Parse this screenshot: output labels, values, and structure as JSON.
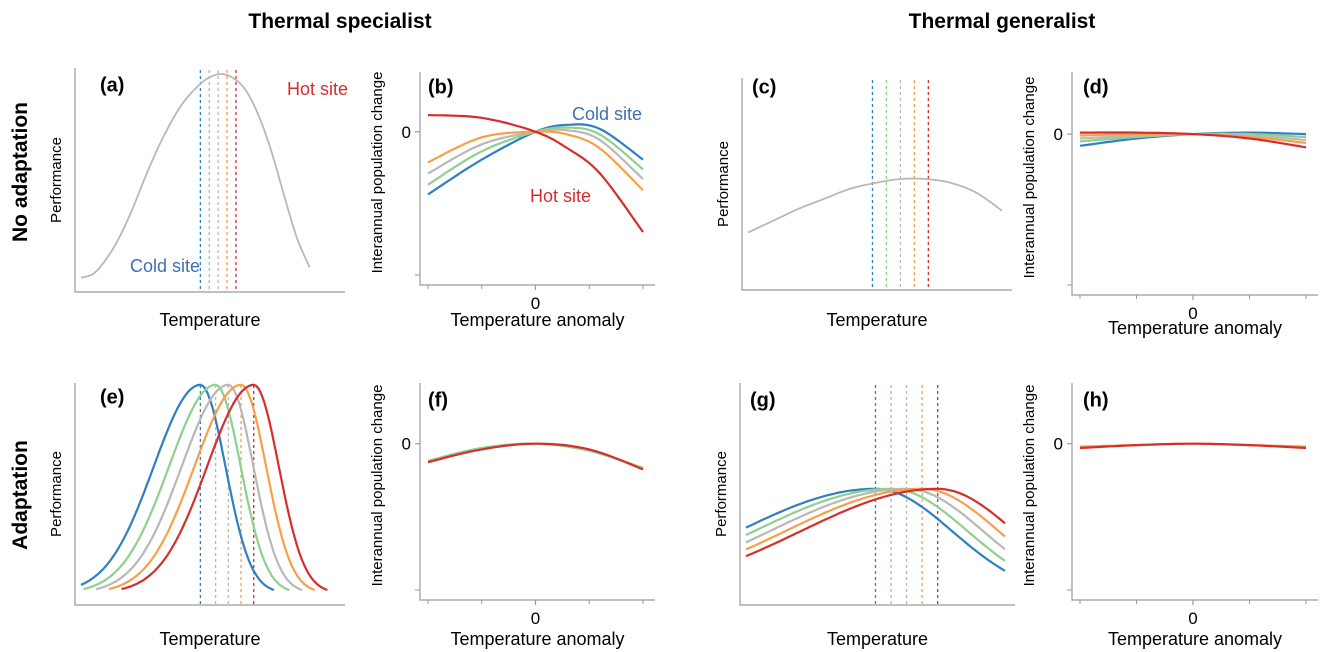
{
  "figure": {
    "column_titles": [
      "Thermal specialist",
      "Thermal generalist"
    ],
    "row_titles": [
      "No adaptation",
      "Adaptation"
    ]
  },
  "colors": {
    "blue": "#2f7fc1",
    "green": "#8fcf8f",
    "grey": "#b8b8b8",
    "orange": "#f5a04a",
    "red": "#d62d2d",
    "cold_label": "#3e6fb5",
    "hot_label": "#d62d2d"
  },
  "chart_data": [
    {
      "panel": "(a)",
      "type": "line",
      "xlabel": "Temperature",
      "ylabel": "Performance",
      "xlim": [
        0,
        1
      ],
      "ylim": [
        0,
        1
      ],
      "series": [
        {
          "color": "grey",
          "x": [
            0.0,
            0.05,
            0.1,
            0.15,
            0.2,
            0.25,
            0.3,
            0.35,
            0.4,
            0.45,
            0.5,
            0.55,
            0.6,
            0.65,
            0.7,
            0.75,
            0.8,
            0.85,
            0.9
          ],
          "y": [
            0.03,
            0.05,
            0.12,
            0.22,
            0.35,
            0.5,
            0.64,
            0.76,
            0.86,
            0.93,
            0.98,
            1.0,
            0.98,
            0.92,
            0.8,
            0.63,
            0.42,
            0.22,
            0.08
          ]
        }
      ],
      "vlines": [
        {
          "x": 0.47,
          "color": "blue"
        },
        {
          "x": 0.505,
          "color": "green"
        },
        {
          "x": 0.54,
          "color": "grey"
        },
        {
          "x": 0.575,
          "color": "orange"
        },
        {
          "x": 0.61,
          "color": "red"
        }
      ],
      "annotations": [
        {
          "text": "Cold site",
          "color": "cold_label"
        },
        {
          "text": "Hot site",
          "color": "hot_label"
        }
      ]
    },
    {
      "panel": "(b)",
      "type": "line",
      "xlabel": "Temperature  anomaly",
      "ylabel": "Interannual population change",
      "xticks": [
        {
          "x": 0,
          "label": "0"
        }
      ],
      "yticks": [
        {
          "y": 0,
          "label": "0"
        }
      ],
      "xlim": [
        -1,
        1
      ],
      "ylim": [
        -1,
        0.3
      ],
      "series": [
        {
          "color": "blue",
          "x": [
            -1,
            -0.5,
            0,
            0.3,
            0.6,
            1
          ],
          "y": [
            -0.45,
            -0.2,
            0.0,
            0.05,
            0.02,
            -0.2
          ]
        },
        {
          "color": "green",
          "x": [
            -1,
            -0.5,
            0,
            0.3,
            0.6,
            1
          ],
          "y": [
            -0.38,
            -0.14,
            0.0,
            0.03,
            -0.02,
            -0.27
          ]
        },
        {
          "color": "grey",
          "x": [
            -1,
            -0.5,
            0,
            0.3,
            0.6,
            1
          ],
          "y": [
            -0.3,
            -0.09,
            0.0,
            0.01,
            -0.06,
            -0.34
          ]
        },
        {
          "color": "orange",
          "x": [
            -1,
            -0.5,
            0,
            0.3,
            0.6,
            1
          ],
          "y": [
            -0.22,
            -0.04,
            0.0,
            -0.02,
            -0.12,
            -0.42
          ]
        },
        {
          "color": "red",
          "x": [
            -1,
            -0.5,
            0,
            0.3,
            0.6,
            1
          ],
          "y": [
            0.12,
            0.1,
            0.0,
            -0.12,
            -0.3,
            -0.72
          ]
        }
      ],
      "annotations": [
        {
          "text": "Cold site",
          "color": "cold_label"
        },
        {
          "text": "Hot site",
          "color": "hot_label"
        }
      ]
    },
    {
      "panel": "(c)",
      "type": "line",
      "xlabel": "Temperature",
      "ylabel": "Performance",
      "xlim": [
        0,
        1
      ],
      "ylim": [
        0,
        1
      ],
      "series": [
        {
          "color": "grey",
          "x": [
            0.0,
            0.1,
            0.2,
            0.3,
            0.4,
            0.5,
            0.6,
            0.7,
            0.8,
            0.9,
            1.0
          ],
          "y": [
            0.25,
            0.31,
            0.37,
            0.42,
            0.47,
            0.5,
            0.52,
            0.52,
            0.5,
            0.45,
            0.36
          ]
        }
      ],
      "vlines": [
        {
          "x": 0.49,
          "color": "blue"
        },
        {
          "x": 0.545,
          "color": "green"
        },
        {
          "x": 0.6,
          "color": "grey"
        },
        {
          "x": 0.655,
          "color": "orange"
        },
        {
          "x": 0.71,
          "color": "red"
        }
      ]
    },
    {
      "panel": "(d)",
      "type": "line",
      "xlabel": "Temperature  anomaly",
      "ylabel": "Interannual population change",
      "xticks": [
        {
          "x": 0,
          "label": "0"
        }
      ],
      "yticks": [
        {
          "y": 0,
          "label": "0"
        }
      ],
      "xlim": [
        -1,
        1
      ],
      "ylim": [
        -1,
        0.3
      ],
      "series": [
        {
          "color": "blue",
          "x": [
            -1,
            -0.5,
            0,
            0.5,
            1
          ],
          "y": [
            -0.08,
            -0.03,
            0.0,
            0.01,
            0.0
          ]
        },
        {
          "color": "green",
          "x": [
            -1,
            -0.5,
            0,
            0.5,
            1
          ],
          "y": [
            -0.05,
            -0.02,
            0.0,
            0.0,
            -0.02
          ]
        },
        {
          "color": "grey",
          "x": [
            -1,
            -0.5,
            0,
            0.5,
            1
          ],
          "y": [
            -0.03,
            -0.01,
            0.0,
            -0.01,
            -0.04
          ]
        },
        {
          "color": "orange",
          "x": [
            -1,
            -0.5,
            0,
            0.5,
            1
          ],
          "y": [
            -0.01,
            0.0,
            0.0,
            -0.02,
            -0.06
          ]
        },
        {
          "color": "red",
          "x": [
            -1,
            -0.5,
            0,
            0.5,
            1
          ],
          "y": [
            0.01,
            0.01,
            0.0,
            -0.03,
            -0.09
          ]
        }
      ]
    },
    {
      "panel": "(e)",
      "type": "line",
      "xlabel": "Temperature",
      "ylabel": "Performance",
      "xlim": [
        0,
        1
      ],
      "ylim": [
        0,
        1
      ],
      "series": [
        {
          "color": "blue",
          "peak": 0.47,
          "y_peak": 1.0
        },
        {
          "color": "green",
          "peak": 0.53,
          "y_peak": 1.0
        },
        {
          "color": "grey",
          "peak": 0.58,
          "y_peak": 1.0
        },
        {
          "color": "orange",
          "peak": 0.63,
          "y_peak": 1.0
        },
        {
          "color": "red",
          "peak": 0.68,
          "y_peak": 1.0
        }
      ],
      "vlines": [
        {
          "x": 0.47,
          "color": "blue"
        },
        {
          "x": 0.53,
          "color": "green"
        },
        {
          "x": 0.58,
          "color": "grey"
        },
        {
          "x": 0.63,
          "color": "orange"
        },
        {
          "x": 0.68,
          "color": "red"
        }
      ]
    },
    {
      "panel": "(f)",
      "type": "line",
      "xlabel": "Temperature  anomaly",
      "ylabel": "Interannual population change",
      "xticks": [
        {
          "x": 0,
          "label": "0"
        }
      ],
      "yticks": [
        {
          "y": 0,
          "label": "0"
        }
      ],
      "xlim": [
        -1,
        1
      ],
      "ylim": [
        -1,
        0.3
      ],
      "series": [
        {
          "color": "green",
          "x": [
            -1,
            -0.5,
            0,
            0.5,
            1
          ],
          "y": [
            -0.12,
            -0.03,
            0.0,
            -0.05,
            -0.17
          ]
        },
        {
          "color": "red",
          "x": [
            -1,
            -0.5,
            0,
            0.5,
            1
          ],
          "y": [
            -0.13,
            -0.04,
            0.0,
            -0.04,
            -0.18
          ]
        }
      ]
    },
    {
      "panel": "(g)",
      "type": "line",
      "xlabel": "Temperature",
      "ylabel": "Performance",
      "xlim": [
        0,
        1
      ],
      "ylim": [
        0,
        1
      ],
      "series": [
        {
          "color": "blue",
          "peak": 0.5,
          "y_peak": 0.52
        },
        {
          "color": "green",
          "peak": 0.56,
          "y_peak": 0.52
        },
        {
          "color": "grey",
          "peak": 0.62,
          "y_peak": 0.52
        },
        {
          "color": "orange",
          "peak": 0.68,
          "y_peak": 0.52
        },
        {
          "color": "red",
          "peak": 0.74,
          "y_peak": 0.52
        }
      ],
      "vlines": [
        {
          "x": 0.5,
          "color": "blue"
        },
        {
          "x": 0.56,
          "color": "green"
        },
        {
          "x": 0.62,
          "color": "grey"
        },
        {
          "x": 0.68,
          "color": "orange"
        },
        {
          "x": 0.74,
          "color": "red"
        }
      ]
    },
    {
      "panel": "(h)",
      "type": "line",
      "xlabel": "Temperature  anomaly",
      "ylabel": "Interannual population change",
      "xticks": [
        {
          "x": 0,
          "label": "0"
        }
      ],
      "yticks": [
        {
          "y": 0,
          "label": "0"
        }
      ],
      "xlim": [
        -1,
        1
      ],
      "ylim": [
        -1,
        0.3
      ],
      "series": [
        {
          "color": "orange",
          "x": [
            -1,
            -0.5,
            0,
            0.5,
            1
          ],
          "y": [
            -0.02,
            -0.01,
            0.0,
            -0.01,
            -0.02
          ]
        },
        {
          "color": "red",
          "x": [
            -1,
            -0.5,
            0,
            0.5,
            1
          ],
          "y": [
            -0.03,
            -0.01,
            0.0,
            -0.01,
            -0.03
          ]
        }
      ]
    }
  ]
}
